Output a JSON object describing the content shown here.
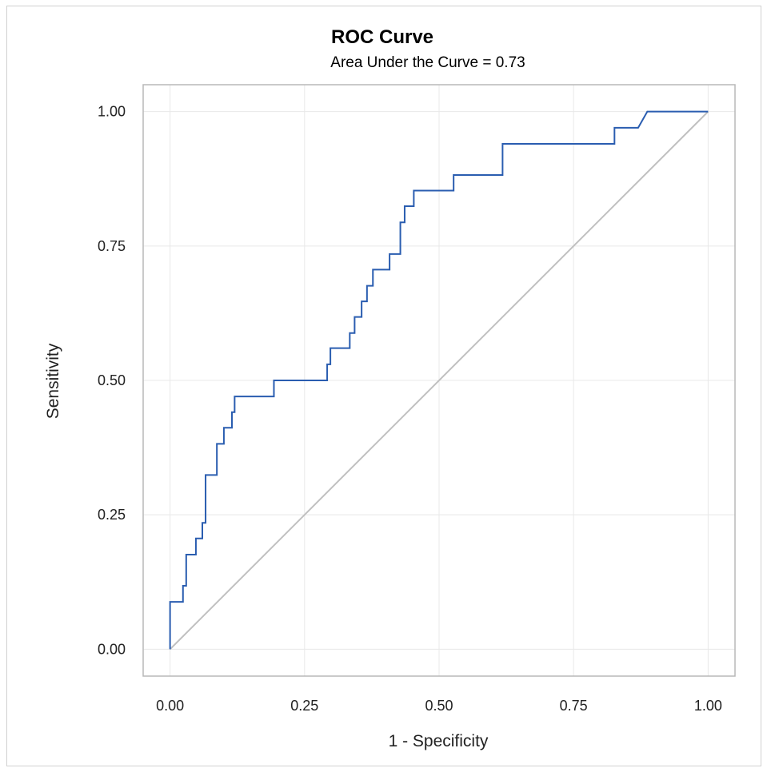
{
  "chart_data": {
    "type": "line",
    "title": "ROC Curve",
    "subtitle": "Area Under the Curve = 0.73",
    "xlabel": "1 - Specificity",
    "ylabel": "Sensitivity",
    "xlim": [
      -0.05,
      1.05
    ],
    "ylim": [
      -0.05,
      1.05
    ],
    "xticks": [
      "0.00",
      "0.25",
      "0.50",
      "0.75",
      "1.00"
    ],
    "yticks": [
      "0.00",
      "0.25",
      "0.50",
      "0.75",
      "1.00"
    ],
    "xtick_values": [
      0,
      0.25,
      0.5,
      0.75,
      1.0
    ],
    "ytick_values": [
      0,
      0.25,
      0.5,
      0.75,
      1.0
    ],
    "grid": true,
    "colors": {
      "roc": "#2a5db0",
      "diagonal": "#c0c0c0",
      "grid": "#e8e8e8",
      "frame": "#b8b8b8"
    },
    "series": [
      {
        "x": [
          0,
          0,
          0.024,
          0.024,
          0.03,
          0.03,
          0.048,
          0.048,
          0.06,
          0.06,
          0.066,
          0.066,
          0.087,
          0.087,
          0.1,
          0.1,
          0.115,
          0.115,
          0.12,
          0.12,
          0.193,
          0.193,
          0.292,
          0.292,
          0.298,
          0.298,
          0.334,
          0.334,
          0.343,
          0.343,
          0.356,
          0.356,
          0.366,
          0.366,
          0.377,
          0.377,
          0.408,
          0.408,
          0.428,
          0.428,
          0.436,
          0.436,
          0.453,
          0.453,
          0.527,
          0.527,
          0.618,
          0.618,
          0.826,
          0.826,
          0.87,
          0.887,
          1.0
        ],
        "y": [
          0,
          0.088,
          0.088,
          0.118,
          0.118,
          0.176,
          0.176,
          0.206,
          0.206,
          0.235,
          0.235,
          0.324,
          0.324,
          0.382,
          0.382,
          0.412,
          0.412,
          0.441,
          0.441,
          0.47,
          0.47,
          0.5,
          0.5,
          0.53,
          0.53,
          0.56,
          0.56,
          0.588,
          0.588,
          0.618,
          0.618,
          0.647,
          0.647,
          0.676,
          0.676,
          0.706,
          0.706,
          0.735,
          0.735,
          0.794,
          0.794,
          0.824,
          0.824,
          0.853,
          0.853,
          0.882,
          0.882,
          0.94,
          0.94,
          0.97,
          0.97,
          1.0,
          1.0
        ]
      },
      {
        "x": [
          0,
          1
        ],
        "y": [
          0,
          1
        ]
      }
    ]
  }
}
